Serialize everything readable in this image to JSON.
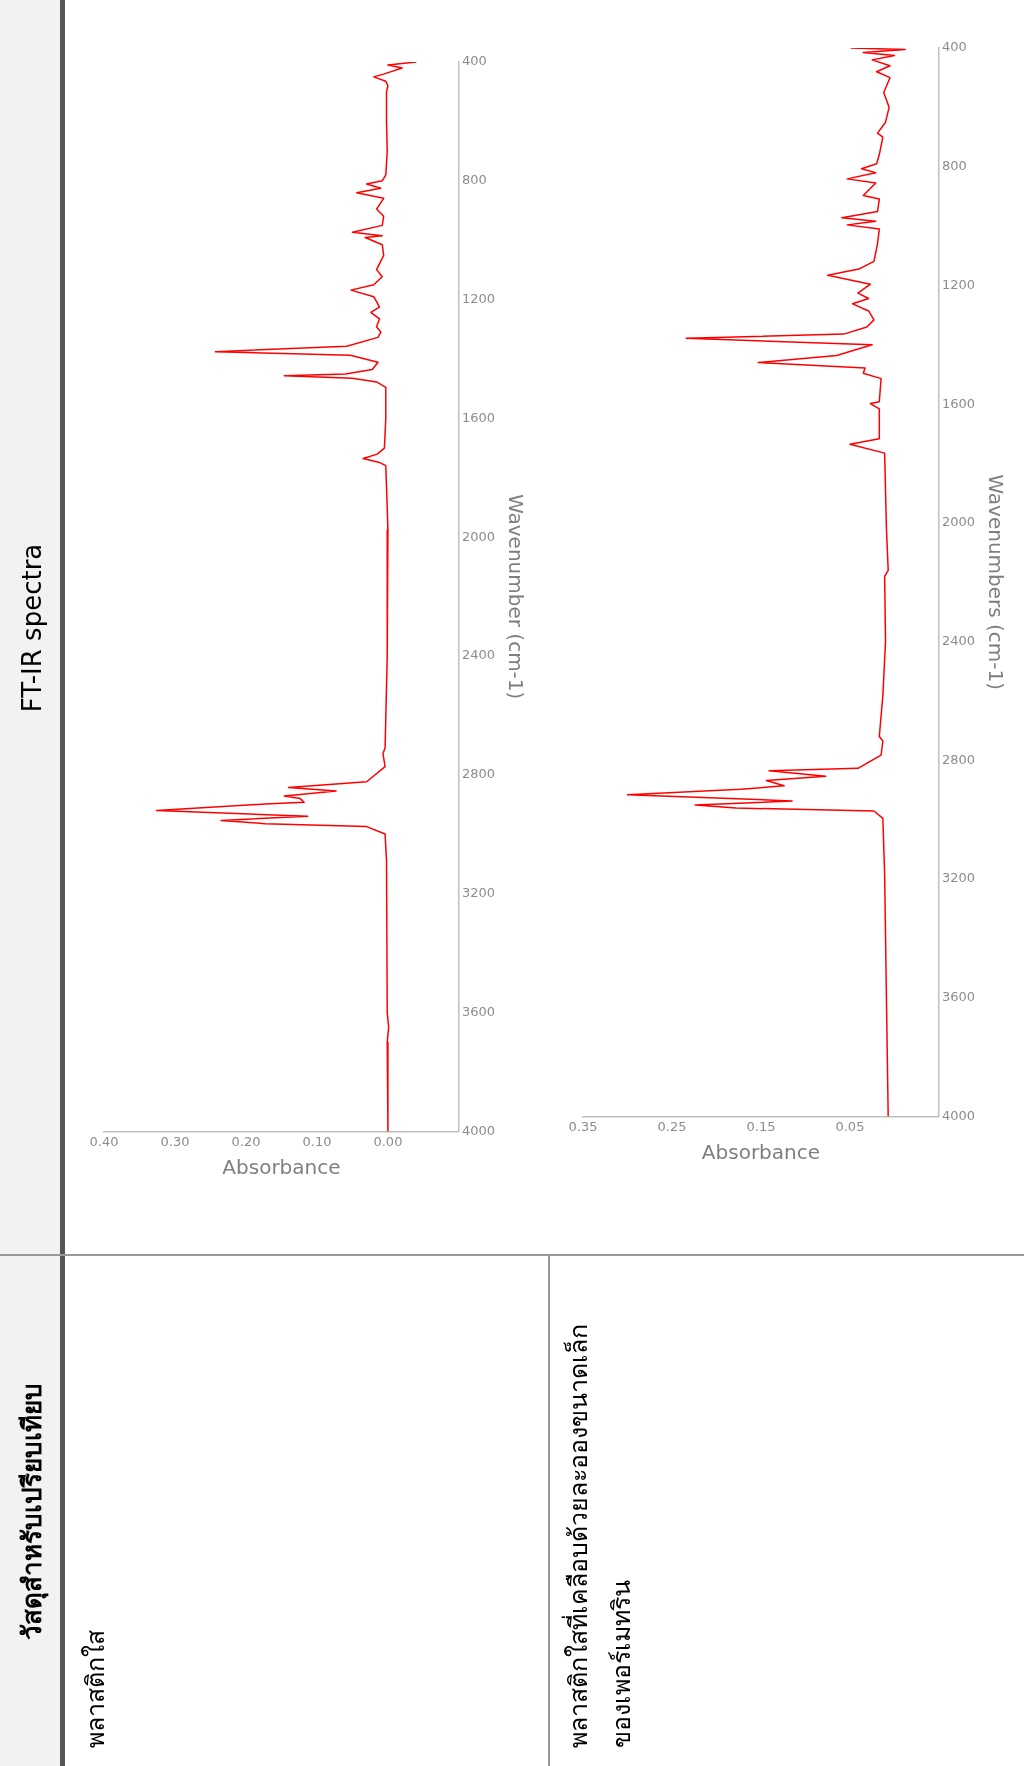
{
  "chart_data": [
    {
      "type": "line",
      "title": "พลาสติกใส",
      "annotations": [
        "วัสดุสำหรับเปรียบเทียบ",
        "FT-IR spectra"
      ],
      "xlabel": "Absorbance",
      "ylabel": "Wavenumber (cm-1)",
      "xlim": [
        0.4,
        -0.1
      ],
      "xticks": [
        {
          "value": 0.4,
          "label": "0.40"
        },
        {
          "value": 0.3,
          "label": "0.30"
        },
        {
          "value": 0.2,
          "label": "0.20"
        },
        {
          "value": 0.1,
          "label": "0.10"
        },
        {
          "value": 0,
          "label": "0.00"
        }
      ],
      "ylim": [
        4000,
        400
      ],
      "yticks": [
        400,
        800,
        1200,
        1600,
        2000,
        2400,
        2800,
        3200,
        3600,
        4000
      ],
      "marker": "none",
      "x": [
        -0.04,
        0.0,
        -0.02,
        0.005,
        0.02,
        0.003,
        0.0,
        0.002,
        0.002,
        0.001,
        0.003,
        0.008,
        0.03,
        0.01,
        0.044,
        0.006,
        0.016,
        0.006,
        0.008,
        0.05,
        0.008,
        0.032,
        0.008,
        0.006,
        0.016,
        0.008,
        0.02,
        0.052,
        0.02,
        0.016,
        0.012,
        0.024,
        0.012,
        0.016,
        0.01,
        0.014,
        0.058,
        0.243,
        0.053,
        0.014,
        0.022,
        0.06,
        0.146,
        0.05,
        0.016,
        0.003,
        0.003,
        0.005,
        0.015,
        0.035,
        0.012,
        0.003,
        0.0,
        0.001,
        0.004,
        0.007,
        0.004,
        0.03,
        0.14,
        0.073,
        0.146,
        0.124,
        0.118,
        0.173,
        0.326,
        0.113,
        0.235,
        0.173,
        0.03,
        0.004,
        0.002,
        0.001,
        -0.001,
        0.001,
        0.0
      ],
      "series": [
        {
          "color": "#ff0000",
          "values": [
            400,
            410,
            420,
            440,
            450,
            465,
            480,
            500,
            600,
            700,
            780,
            800,
            811,
            825,
            840,
            859,
            895,
            919,
            950,
            973,
            985,
            991,
            1015,
            1051,
            1099,
            1123,
            1150,
            1168,
            1190,
            1207,
            1225,
            1243,
            1265,
            1291,
            1310,
            1327,
            1357,
            1375,
            1387,
            1411,
            1435,
            1450,
            1456,
            1465,
            1477,
            1495,
            1600,
            1700,
            1720,
            1735,
            1748,
            1759,
            1975,
            2400,
            2709,
            2728,
            2772,
            2823,
            2842,
            2854,
            2871,
            2879,
            2892,
            2898,
            2920,
            2939,
            2953,
            2964,
            2974,
            2999,
            3088,
            3600,
            3649,
            3700,
            4000
          ]
        }
      ]
    },
    {
      "type": "line",
      "title": "พลาสติกใสที่เคลือบด้วยละอองขนาดเล็ก\nของเพอร์เมทริน",
      "xlabel": "Absorbance",
      "ylabel": "Wavenumbers (cm-1)",
      "xlim": [
        0.35,
        -0.05
      ],
      "xticks": [
        0.35,
        0.25,
        0.15,
        0.05
      ],
      "ylim": [
        4000,
        400
      ],
      "yticks": [
        400,
        800,
        1200,
        1600,
        2000,
        2400,
        2800,
        3200,
        3600,
        4000
      ],
      "marker": "none",
      "x": [
        0.049,
        -0.012,
        0.035,
        0.0,
        0.025,
        0.005,
        0.02,
        0.005,
        0.012,
        0.006,
        0.01,
        0.019,
        0.013,
        0.017,
        0.02,
        0.037,
        0.021,
        0.053,
        0.021,
        0.035,
        0.017,
        0.019,
        0.059,
        0.021,
        0.053,
        0.017,
        0.019,
        0.023,
        0.04,
        0.075,
        0.027,
        0.041,
        0.029,
        0.047,
        0.029,
        0.023,
        0.031,
        0.057,
        0.234,
        0.025,
        0.065,
        0.153,
        0.033,
        0.035,
        0.015,
        0.017,
        0.027,
        0.017,
        0.017,
        0.05,
        0.011,
        0.009,
        0.007,
        0.011,
        0.01,
        0.013,
        0.017,
        0.013,
        0.015,
        0.041,
        0.141,
        0.077,
        0.144,
        0.124,
        0.173,
        0.3,
        0.115,
        0.224,
        0.178,
        0.023,
        0.013,
        0.011,
        0.009,
        0.007
      ],
      "series": [
        {
          "color": "#ff0000",
          "values": [
            400,
            405,
            415,
            425,
            440,
            460,
            480,
            500,
            550,
            600,
            650,
            687,
            700,
            759,
            790,
            807,
            820,
            841,
            855,
            897,
            909,
            951,
            972,
            984,
            996,
            1010,
            1059,
            1119,
            1145,
            1166,
            1196,
            1226,
            1244,
            1262,
            1286,
            1316,
            1340,
            1364,
            1378,
            1400,
            1436,
            1460,
            1478,
            1496,
            1514,
            1592,
            1598,
            1616,
            1717,
            1735,
            1765,
            2017,
            2160,
            2180,
            2400,
            2582,
            2720,
            2735,
            2783,
            2827,
            2835,
            2854,
            2868,
            2886,
            2898,
            2916,
            2937,
            2951,
            2961,
            2971,
            2996,
            3184,
            3598,
            4000
          ]
        }
      ]
    }
  ]
}
